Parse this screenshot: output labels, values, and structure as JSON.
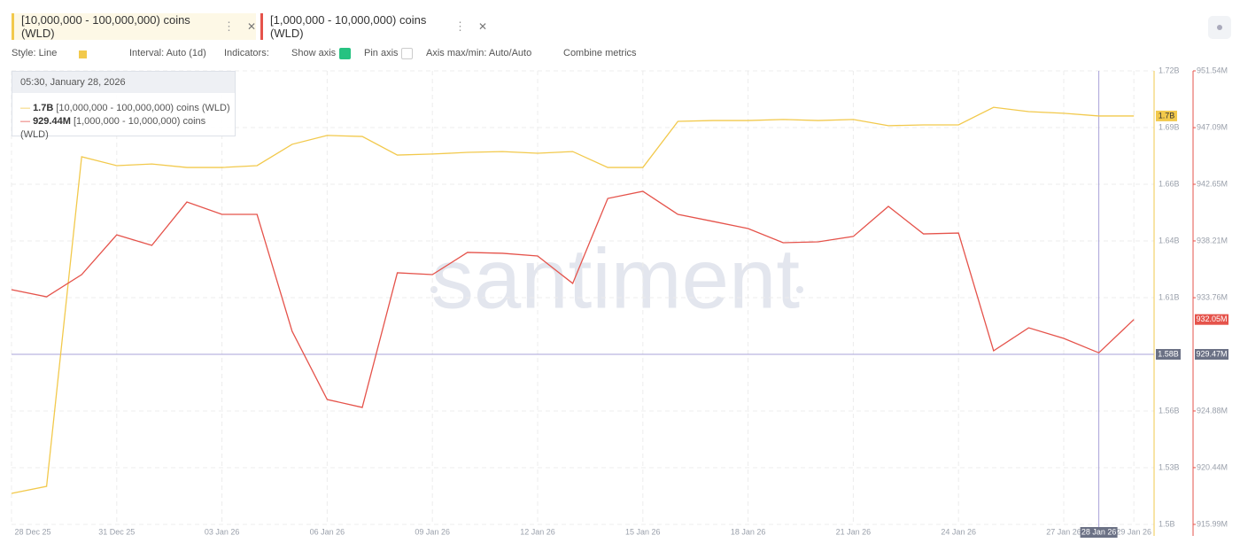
{
  "tabs": [
    "[10,000,000 - 100,000,000) coins (WLD)",
    "[1,000,000 - 10,000,000) coins (WLD)"
  ],
  "toolbar": {
    "style": "Style: Line",
    "interval": "Interval: Auto (1d)",
    "indicators": "Indicators:",
    "show_axis": "Show axis",
    "pin_axis": "Pin axis",
    "axis_range": "Axis max/min: Auto/Auto",
    "combine": "Combine metrics"
  },
  "chart_data": {
    "type": "line",
    "watermark": "santiment",
    "categories": [
      "28 Dec 25",
      null,
      null,
      "31 Dec 25",
      null,
      null,
      "03 Jan 26",
      null,
      null,
      "06 Jan 26",
      null,
      null,
      "09 Jan 26",
      null,
      null,
      "12 Jan 26",
      null,
      null,
      "15 Jan 26",
      null,
      null,
      "18 Jan 26",
      null,
      null,
      "21 Jan 26",
      null,
      null,
      "24 Jan 26",
      null,
      null,
      "27 Jan 26",
      null,
      "29 Jan 26"
    ],
    "series": [
      {
        "name": "[10,000,000 - 100,000,000) coins (WLD)",
        "color": "#f2c94c",
        "values": [
          1515400000,
          1518800000,
          1678100000,
          1673800000,
          1674600000,
          1672900000,
          1672900000,
          1673800000,
          1684100000,
          1688400000,
          1687900000,
          1678900000,
          1679400000,
          1680200000,
          1680600000,
          1679800000,
          1680600000,
          1672900000,
          1672900000,
          1695200000,
          1695600000,
          1695600000,
          1696100000,
          1695600000,
          1696100000,
          1693100000,
          1693500000,
          1693500000,
          1702000000,
          1699900000,
          1699100000,
          1697800000,
          1697800000
        ]
      },
      {
        "name": "[1,000,000 - 10,000,000) coins (WLD)",
        "color": "#e5534b",
        "axis": "y2",
        "values": [
          934390000,
          933830000,
          935570000,
          938690000,
          937860000,
          941260000,
          940290000,
          940290000,
          931130000,
          925780000,
          925160000,
          935710000,
          935570000,
          937310000,
          937240000,
          937030000,
          934880000,
          941540000,
          942100000,
          940290000,
          939740000,
          939180000,
          938070000,
          938140000,
          938560000,
          940920000,
          938760000,
          938830000,
          929600000,
          931400000,
          930570000,
          929440000,
          932050000
        ]
      }
    ],
    "ylim": [
      1500400000,
      1719600000
    ],
    "yticks": [
      {
        "value": 1500400000,
        "label": "1.5B"
      },
      {
        "value": 1527800000,
        "label": "1.53B"
      },
      {
        "value": 1555200000,
        "label": "1.56B"
      },
      {
        "value": 1610000000,
        "label": "1.61B"
      },
      {
        "value": 1637400000,
        "label": "1.64B"
      },
      {
        "value": 1664800000,
        "label": "1.66B"
      },
      {
        "value": 1692200000,
        "label": "1.69B"
      },
      {
        "value": 1719600000,
        "label": "1.72B"
      }
    ],
    "y2lim": [
      915990000,
      951540000
    ],
    "y2ticks": [
      {
        "value": 915990000,
        "label": "915.99M"
      },
      {
        "value": 920440000,
        "label": "920.44M"
      },
      {
        "value": 924880000,
        "label": "924.88M"
      },
      {
        "value": 933760000,
        "label": "933.76M"
      },
      {
        "value": 938210000,
        "label": "938.21M"
      },
      {
        "value": 942650000,
        "label": "942.65M"
      },
      {
        "value": 947090000,
        "label": "947.09M"
      },
      {
        "value": 951540000,
        "label": "951.54M"
      }
    ],
    "grid": true,
    "last_value_labels": [
      "1.7B",
      "932.05M"
    ],
    "crosshair": {
      "index": 31,
      "x_label": "28 Jan 26",
      "y_value": 1582600000,
      "y_label": "1.58B",
      "y2_label": "929.47M"
    },
    "tooltip": {
      "date": "05:30, January 28, 2026",
      "value_labels": [
        "1.7B",
        "929.44M"
      ]
    }
  }
}
